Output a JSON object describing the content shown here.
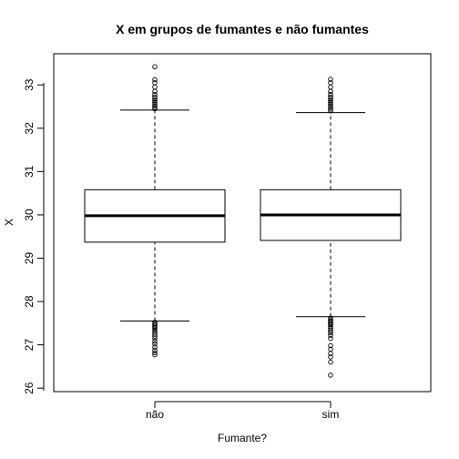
{
  "chart_data": {
    "type": "boxplot",
    "title": "X em grupos de fumantes e não fumantes",
    "xlabel": "Fumante?",
    "ylabel": "X",
    "ylim": [
      25.92,
      33.72
    ],
    "yticks": [
      26,
      27,
      28,
      29,
      30,
      31,
      32,
      33
    ],
    "grid": false,
    "legend": "none",
    "categories": [
      "não",
      "sim"
    ],
    "boxes": [
      {
        "category": "não",
        "whisker_low": 27.55,
        "q1": 29.37,
        "median": 29.98,
        "q3": 30.58,
        "whisker_high": 32.42,
        "outliers_low": [
          27.52,
          27.49,
          27.46,
          27.43,
          27.4,
          27.37,
          27.33,
          27.29,
          27.25,
          27.2,
          27.15,
          27.08,
          27.02,
          26.95,
          26.88,
          26.82,
          26.77
        ],
        "outliers_high": [
          32.45,
          32.48,
          32.52,
          32.56,
          32.6,
          32.64,
          32.68,
          32.72,
          32.78,
          32.85,
          32.95,
          33.05,
          33.12,
          33.42
        ]
      },
      {
        "category": "sim",
        "whisker_low": 27.65,
        "q1": 29.41,
        "median": 30.0,
        "q3": 30.58,
        "whisker_high": 32.36,
        "outliers_low": [
          27.62,
          27.58,
          27.55,
          27.52,
          27.49,
          27.46,
          27.42,
          27.38,
          27.33,
          27.28,
          27.22,
          27.15,
          26.98,
          26.9,
          26.8,
          26.72,
          26.6,
          26.3
        ],
        "outliers_high": [
          32.4,
          32.44,
          32.48,
          32.52,
          32.56,
          32.6,
          32.64,
          32.68,
          32.72,
          32.78,
          32.85,
          32.95,
          33.05,
          33.13
        ]
      }
    ]
  }
}
